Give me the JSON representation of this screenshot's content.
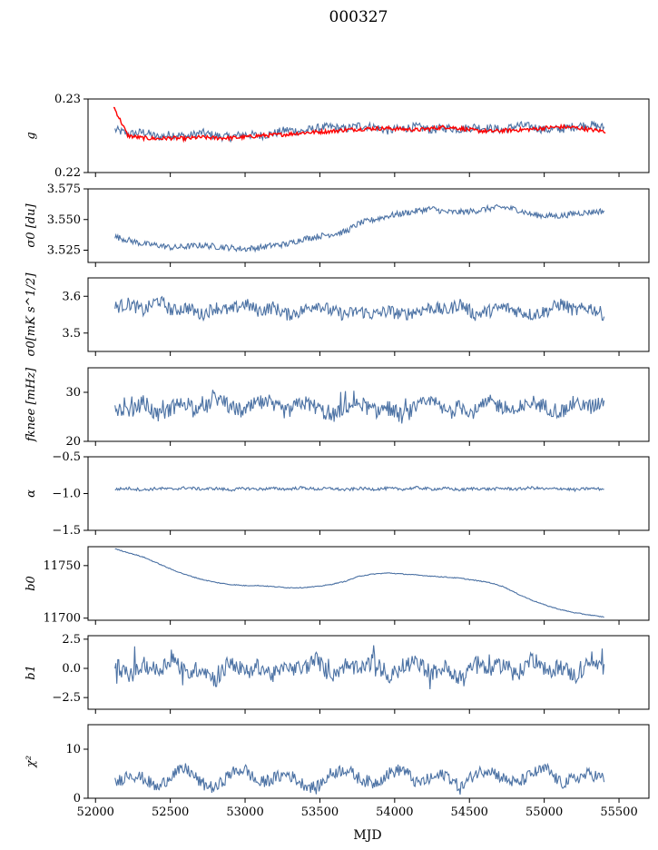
{
  "figure": {
    "title": "000327",
    "xlabel": "MJD"
  },
  "colors": {
    "series": "#4c72a4",
    "gain_fit": "#ff0000",
    "axes": "#000000"
  },
  "chart_data": [
    {
      "type": "line",
      "ylabel": "g",
      "ylim": [
        0.22,
        0.23
      ],
      "yticks": [
        "0.23",
        "0.22"
      ],
      "xlim": [
        51950,
        55700
      ],
      "series": [
        {
          "role": "data",
          "x_range": [
            52130,
            55400
          ],
          "values": [
            0.2258,
            0.2252,
            0.2255,
            0.2248,
            0.2252,
            0.2249,
            0.2254,
            0.225,
            0.2248,
            0.2252,
            0.225,
            0.2253,
            0.2258,
            0.2256,
            0.226,
            0.2262,
            0.2259,
            0.2264,
            0.2262,
            0.2257,
            0.226,
            0.2262,
            0.2258,
            0.2261,
            0.2259,
            0.2262,
            0.226,
            0.2258,
            0.2264,
            0.2262,
            0.2258,
            0.2259,
            0.2263,
            0.2265,
            0.2261
          ]
        },
        {
          "role": "fit",
          "x_range": [
            52120,
            55410
          ],
          "values": [
            0.229,
            0.225,
            0.2247,
            0.2246,
            0.2247,
            0.2246,
            0.2248,
            0.2247,
            0.2247,
            0.2248,
            0.225,
            0.2251,
            0.2252,
            0.2254,
            0.2255,
            0.2256,
            0.2258,
            0.2259,
            0.226,
            0.226,
            0.2259,
            0.2258,
            0.226,
            0.2262,
            0.226,
            0.2257,
            0.2256,
            0.2257,
            0.2258,
            0.2259,
            0.2261,
            0.2262,
            0.2261,
            0.2258,
            0.2256
          ]
        }
      ]
    },
    {
      "type": "line",
      "ylabel": "σ0 [du]",
      "ylim": [
        3.515,
        3.575
      ],
      "yticks": [
        "3.575",
        "3.550",
        "3.525"
      ],
      "series": [
        {
          "role": "data",
          "x_range": [
            52130,
            55400
          ],
          "values": [
            3.536,
            3.533,
            3.53,
            3.529,
            3.527,
            3.528,
            3.529,
            3.528,
            3.527,
            3.526,
            3.527,
            3.529,
            3.53,
            3.534,
            3.536,
            3.538,
            3.54,
            3.547,
            3.55,
            3.553,
            3.555,
            3.557,
            3.559,
            3.556,
            3.556,
            3.557,
            3.559,
            3.56,
            3.558,
            3.554,
            3.553,
            3.553,
            3.555,
            3.556,
            3.557
          ]
        }
      ]
    },
    {
      "type": "line",
      "ylabel": "σ0[mK s^1/2]",
      "ylim": [
        3.45,
        3.65
      ],
      "yticks": [
        "3.6",
        "3.5"
      ],
      "series": [
        {
          "role": "data",
          "x_range": [
            52130,
            55400
          ],
          "values": [
            3.57,
            3.58,
            3.56,
            3.59,
            3.56,
            3.57,
            3.55,
            3.57,
            3.56,
            3.58,
            3.56,
            3.57,
            3.55,
            3.56,
            3.58,
            3.56,
            3.55,
            3.56,
            3.55,
            3.56,
            3.55,
            3.56,
            3.57,
            3.56,
            3.58,
            3.55,
            3.56,
            3.57,
            3.56,
            3.55,
            3.56,
            3.58,
            3.56,
            3.57,
            3.55
          ]
        }
      ]
    },
    {
      "type": "line",
      "ylabel": "fknee [mHz]",
      "ylim": [
        20,
        35
      ],
      "yticks": [
        "30",
        "20"
      ],
      "series": [
        {
          "role": "data",
          "x_range": [
            52130,
            55400
          ],
          "values": [
            27,
            26,
            28,
            25,
            27,
            28,
            26,
            29,
            27,
            26,
            28,
            27,
            26,
            28,
            27,
            25,
            27,
            28,
            26,
            27,
            25,
            27,
            28,
            26,
            27,
            26,
            28,
            27,
            26,
            28,
            27,
            26,
            28,
            27,
            28
          ]
        }
      ]
    },
    {
      "type": "line",
      "ylabel": "α",
      "ylim": [
        -1.5,
        -0.5
      ],
      "yticks": [
        "−0.5",
        "−1.0",
        "−1.5"
      ],
      "series": [
        {
          "role": "data",
          "x_range": [
            52130,
            55400
          ],
          "values": [
            -0.94,
            -0.93,
            -0.95,
            -0.93,
            -0.94,
            -0.92,
            -0.94,
            -0.93,
            -0.95,
            -0.93,
            -0.94,
            -0.93,
            -0.94,
            -0.92,
            -0.94,
            -0.93,
            -0.95,
            -0.93,
            -0.94,
            -0.93,
            -0.94,
            -0.92,
            -0.94,
            -0.93,
            -0.95,
            -0.93,
            -0.94,
            -0.93,
            -0.94,
            -0.92,
            -0.94,
            -0.93,
            -0.95,
            -0.93,
            -0.94
          ]
        }
      ]
    },
    {
      "type": "line",
      "ylabel": "b0",
      "ylim": [
        11698,
        11768
      ],
      "yticks": [
        "11750",
        "11700"
      ],
      "series": [
        {
          "role": "data",
          "x_range": [
            52130,
            55400
          ],
          "values": [
            11766,
            11762,
            11758,
            11752,
            11746,
            11741,
            11737,
            11734,
            11732,
            11731,
            11731,
            11730,
            11729,
            11729,
            11730,
            11732,
            11735,
            11740,
            11742,
            11743,
            11742,
            11741,
            11740,
            11739,
            11738,
            11736,
            11734,
            11730,
            11723,
            11717,
            11712,
            11708,
            11705,
            11703,
            11701
          ]
        }
      ]
    },
    {
      "type": "line",
      "ylabel": "b1",
      "ylim": [
        -3.5,
        2.8
      ],
      "yticks": [
        "2.5",
        "0.0",
        "−2.5"
      ],
      "series": [
        {
          "role": "data",
          "x_range": [
            52130,
            55400
          ],
          "values": [
            0.5,
            -0.8,
            0.3,
            -0.2,
            0.9,
            -0.5,
            0.1,
            -1.0,
            0.6,
            -0.3,
            0.2,
            -0.6,
            0.4,
            -0.1,
            0.8,
            -0.7,
            0.3,
            -0.2,
            0.7,
            -0.9,
            0.2,
            0.5,
            -0.4,
            0.1,
            -0.8,
            0.6,
            -0.2,
            0.4,
            -0.5,
            0.9,
            -0.3,
            0.2,
            -0.7,
            0.5,
            0.1
          ]
        }
      ]
    },
    {
      "type": "line",
      "ylabel": "χ²",
      "ylim": [
        0,
        15
      ],
      "yticks": [
        "10",
        "0"
      ],
      "xticks": [
        "52000",
        "52500",
        "53000",
        "53500",
        "54000",
        "54500",
        "55000",
        "55500"
      ],
      "series": [
        {
          "role": "data",
          "x_range": [
            52130,
            55400
          ],
          "values": [
            3,
            5,
            4,
            2,
            5,
            6,
            3,
            2,
            5,
            6,
            3,
            4,
            5,
            3,
            2,
            5,
            6,
            4,
            3,
            5,
            6,
            3,
            4,
            5,
            2,
            5,
            6,
            4,
            3,
            5,
            6,
            3,
            4,
            5,
            4
          ]
        }
      ]
    }
  ]
}
